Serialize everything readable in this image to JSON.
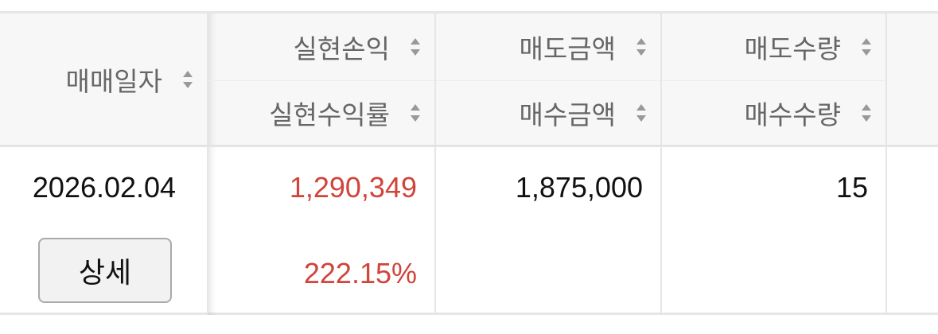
{
  "table": {
    "headers": {
      "trade_date": "매매일자",
      "realized_pnl": "실현손익",
      "realized_return": "실현수익률",
      "sell_amount": "매도금액",
      "buy_amount": "매수금액",
      "sell_qty": "매도수량",
      "buy_qty": "매수수량"
    },
    "sort_icon": "sort-updown-icon",
    "rows": [
      {
        "trade_date": "2026.02.04",
        "detail_button": "상세",
        "realized_pnl": "1,290,349",
        "realized_return": "222.15%",
        "sell_amount": "1,875,000",
        "buy_amount": "",
        "sell_qty": "15",
        "buy_qty": ""
      }
    ]
  },
  "colors": {
    "profit": "#d0443a",
    "header_bg": "#f7f7f7",
    "header_text": "#666666"
  }
}
